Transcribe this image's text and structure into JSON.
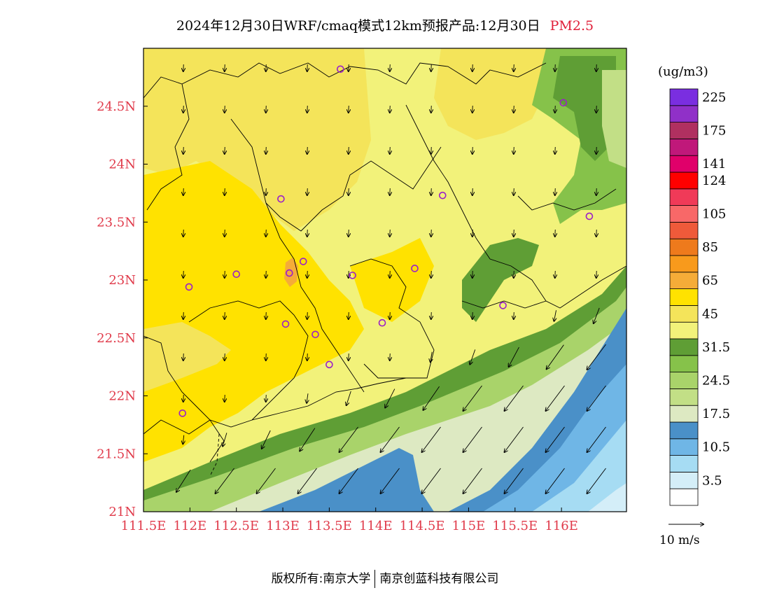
{
  "title": {
    "main": "2024年12月30日WRF/cmaq模式12km预报产品:12月30日",
    "species": "PM2.5"
  },
  "colors": {
    "axis_label": "#e03a4a",
    "title_species": "#e0203a",
    "boundary": "#000000",
    "marker": "#9b20c8"
  },
  "axes": {
    "lon_ticks": [
      "111.5E",
      "112E",
      "112.5E",
      "113E",
      "113.5E",
      "114E",
      "114.5E",
      "115E",
      "115.5E",
      "116E"
    ],
    "lon_values": [
      111.5,
      112.0,
      112.5,
      113.0,
      113.5,
      114.0,
      114.5,
      115.0,
      115.5,
      116.0
    ],
    "lat_ticks": [
      "24.5N",
      "24N",
      "23.5N",
      "23N",
      "22.5N",
      "22N",
      "21.5N",
      "21N"
    ],
    "lat_values": [
      24.5,
      24.0,
      23.5,
      23.0,
      22.5,
      22.0,
      21.5,
      21.0
    ],
    "lon_range": [
      111.5,
      116.7
    ],
    "lat_range": [
      21.0,
      25.0
    ]
  },
  "colorbar": {
    "unit": "(ug/m3)",
    "levels": [
      {
        "color": "#ffffff",
        "label": ""
      },
      {
        "color": "#d4eef8",
        "label": "3.5"
      },
      {
        "color": "#a6dcf3",
        "label": ""
      },
      {
        "color": "#6fb6e6",
        "label": "10.5"
      },
      {
        "color": "#4a90c8",
        "label": ""
      },
      {
        "color": "#dde9c2",
        "label": "17.5"
      },
      {
        "color": "#c2df86",
        "label": ""
      },
      {
        "color": "#a9d36a",
        "label": "24.5"
      },
      {
        "color": "#86c24a",
        "label": ""
      },
      {
        "color": "#5f9e35",
        "label": "31.5"
      },
      {
        "color": "#f2f27a",
        "label": ""
      },
      {
        "color": "#f4e45a",
        "label": "45"
      },
      {
        "color": "#ffe200",
        "label": ""
      },
      {
        "color": "#f5ac38",
        "label": "65"
      },
      {
        "color": "#f89a1c",
        "label": ""
      },
      {
        "color": "#ee7a1c",
        "label": "85"
      },
      {
        "color": "#ef5a3a",
        "label": ""
      },
      {
        "color": "#f86868",
        "label": "105"
      },
      {
        "color": "#f03a58",
        "label": ""
      },
      {
        "color": "#ff0000",
        "label": "124"
      },
      {
        "color": "#e0006a",
        "label": "141"
      },
      {
        "color": "#c0187a",
        "label": ""
      },
      {
        "color": "#b03060",
        "label": "175"
      },
      {
        "color": "#9030c8",
        "label": ""
      },
      {
        "color": "#7a2ee0",
        "label": "225"
      }
    ],
    "tick_labels": [
      "225",
      "175",
      "141",
      "124",
      "105",
      "85",
      "65",
      "45",
      "31.5",
      "24.5",
      "17.5",
      "10.5",
      "3.5"
    ]
  },
  "wind": {
    "reference_label": "10 m/s"
  },
  "city_markers": [
    [
      113.62,
      24.82
    ],
    [
      116.02,
      24.53
    ],
    [
      114.72,
      23.73
    ],
    [
      112.98,
      23.7
    ],
    [
      116.3,
      23.55
    ],
    [
      113.22,
      23.16
    ],
    [
      112.5,
      23.05
    ],
    [
      113.07,
      23.06
    ],
    [
      113.75,
      23.04
    ],
    [
      114.42,
      23.1
    ],
    [
      111.99,
      22.94
    ],
    [
      113.35,
      22.53
    ],
    [
      113.03,
      22.62
    ],
    [
      114.07,
      22.63
    ],
    [
      115.37,
      22.78
    ],
    [
      113.5,
      22.27
    ],
    [
      111.92,
      21.85
    ]
  ],
  "footer": {
    "copyright": "版权所有:南京大学",
    "company": "南京创蓝科技有限公司"
  }
}
